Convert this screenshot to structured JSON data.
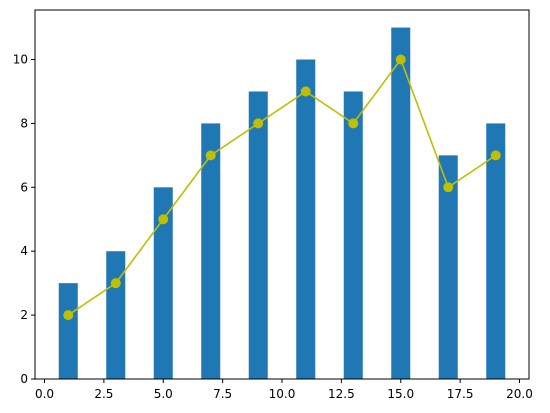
{
  "chart_data": {
    "type": "bar",
    "title": "",
    "xlabel": "",
    "ylabel": "",
    "xlim": [
      -0.4,
      20.4
    ],
    "ylim": [
      0,
      11.55
    ],
    "xticks": [
      0.0,
      2.5,
      5.0,
      7.5,
      10.0,
      12.5,
      15.0,
      17.5,
      20.0
    ],
    "xtick_labels": [
      "0.0",
      "2.5",
      "5.0",
      "7.5",
      "10.0",
      "12.5",
      "15.0",
      "17.5",
      "20.0"
    ],
    "yticks": [
      0,
      2,
      4,
      6,
      8,
      10
    ],
    "ytick_labels": [
      "0",
      "2",
      "4",
      "6",
      "8",
      "10"
    ],
    "grid": false,
    "series": [
      {
        "type": "bar",
        "color": "#1f77b4",
        "x": [
          1,
          3,
          5,
          7,
          9,
          11,
          13,
          15,
          17,
          19
        ],
        "values": [
          3,
          4,
          6,
          8,
          9,
          10,
          9,
          11,
          7,
          8
        ],
        "bar_width_data_units": 0.8
      },
      {
        "type": "line",
        "color": "#bfbf00",
        "marker": "circle",
        "x": [
          1,
          3,
          5,
          7,
          9,
          11,
          13,
          15,
          17,
          19
        ],
        "values": [
          2,
          3,
          5,
          7,
          8,
          9,
          8,
          10,
          6,
          7
        ]
      }
    ]
  }
}
